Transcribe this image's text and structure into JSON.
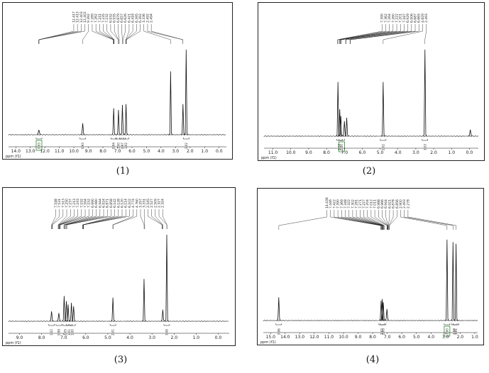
{
  "colors": {
    "spectrum": "#111111",
    "integral_box": "#2e8b2e",
    "frame": "#222222"
  },
  "chart_data": [
    {
      "type": "line",
      "caption": "(1)",
      "axis_unit": "ppm (f1)",
      "xlim": [
        14.5,
        -0.5
      ],
      "ticks": [
        "14.0",
        "13.0",
        "12.0",
        "11.0",
        "10.0",
        "9.0",
        "8.0",
        "7.0",
        "6.0",
        "5.0",
        "4.0",
        "3.0",
        "2.0",
        "1.0",
        "0.0"
      ],
      "tick_values": [
        14,
        13,
        12,
        11,
        10,
        9,
        8,
        7,
        6,
        5,
        4,
        3,
        2,
        1,
        0
      ],
      "peak_labels": [
        "12.417",
        "12.413",
        "12.403",
        "12.402",
        "9.392",
        "7.289",
        "7.262",
        "7.241",
        "7.235",
        "7.232",
        "6.932",
        "6.935",
        "6.879",
        "6.657",
        "6.626",
        "6.421",
        "6.418",
        "6.395",
        "6.392",
        "3.336",
        "2.492",
        "2.494"
      ],
      "peaks": [
        {
          "ppm": 12.41,
          "height": 0.04
        },
        {
          "ppm": 9.39,
          "height": 0.12
        },
        {
          "ppm": 7.26,
          "height": 0.3
        },
        {
          "ppm": 6.93,
          "height": 0.28
        },
        {
          "ppm": 6.66,
          "height": 0.34
        },
        {
          "ppm": 6.41,
          "height": 0.35
        },
        {
          "ppm": 3.34,
          "height": 0.74
        },
        {
          "ppm": 2.49,
          "height": 0.35
        },
        {
          "ppm": 2.27,
          "height": 1.0
        }
      ],
      "integrals": [
        {
          "ppm": 12.4,
          "label": "0.93",
          "boxed": true
        },
        {
          "ppm": 9.39,
          "label": "0.93",
          "boxed": false
        },
        {
          "ppm": 7.26,
          "label": "0.94",
          "boxed": false
        },
        {
          "ppm": 6.93,
          "label": "1.00",
          "boxed": false
        },
        {
          "ppm": 6.66,
          "label": "0.97",
          "boxed": false
        },
        {
          "ppm": 6.41,
          "label": "1.02",
          "boxed": false
        },
        {
          "ppm": 2.27,
          "label": "3.02",
          "boxed": false
        }
      ]
    },
    {
      "type": "line",
      "caption": "(2)",
      "axis_unit": "ppm (f1)",
      "xlim": [
        11.5,
        -0.5
      ],
      "ticks": [
        "11.0",
        "10.0",
        "9.0",
        "8.0",
        "7.0",
        "6.0",
        "5.0",
        "4.0",
        "3.0",
        "2.0",
        "1.0",
        "0.0"
      ],
      "tick_values": [
        11,
        10,
        9,
        8,
        7,
        6,
        5,
        4,
        3,
        2,
        1,
        0
      ],
      "peak_labels": [
        "7.390",
        "7.362",
        "7.264",
        "7.260",
        "7.222",
        "7.201",
        "7.187",
        "6.929",
        "6.906",
        "6.687",
        "6.665",
        "4.829",
        "2.493"
      ],
      "peaks": [
        {
          "ppm": 7.36,
          "height": 0.62
        },
        {
          "ppm": 7.26,
          "height": 0.3
        },
        {
          "ppm": 7.2,
          "height": 0.22
        },
        {
          "ppm": 7.0,
          "height": 0.16
        },
        {
          "ppm": 6.87,
          "height": 0.2
        },
        {
          "ppm": 4.83,
          "height": 0.62
        },
        {
          "ppm": 2.49,
          "height": 1.0
        },
        {
          "ppm": -0.05,
          "height": 0.06
        }
      ],
      "integrals": [
        {
          "ppm": 7.28,
          "label": "2.18",
          "boxed": false
        },
        {
          "ppm": 7.15,
          "label": "2.00",
          "boxed": true
        },
        {
          "ppm": 4.83,
          "label": "2.02",
          "boxed": false
        },
        {
          "ppm": 2.49,
          "label": "3.03",
          "boxed": false
        }
      ]
    },
    {
      "type": "line",
      "caption": "(3)",
      "axis_unit": "ppm (f1)",
      "xlim": [
        9.5,
        -0.5
      ],
      "ticks": [
        "9.0",
        "8.0",
        "7.0",
        "6.0",
        "5.0",
        "4.0",
        "3.0",
        "2.0",
        "1.0",
        "0.0"
      ],
      "tick_values": [
        9,
        8,
        7,
        6,
        5,
        4,
        3,
        2,
        1,
        0
      ],
      "peak_labels": [
        "7.548",
        "7.531",
        "7.513",
        "7.250",
        "7.237",
        "7.213",
        "7.193",
        "7.192",
        "7.164",
        "7.152",
        "6.990",
        "6.980",
        "6.944",
        "6.924",
        "6.871",
        "6.858",
        "6.142",
        "6.128",
        "6.120",
        "6.114",
        "6.102",
        "4.774",
        "4.760",
        "3.357",
        "3.331",
        "2.545",
        "2.527",
        "2.509",
        "2.327",
        "2.324"
      ],
      "peaks": [
        {
          "ppm": 7.55,
          "height": 0.1
        },
        {
          "ppm": 7.22,
          "height": 0.08
        },
        {
          "ppm": 6.98,
          "height": 0.28
        },
        {
          "ppm": 6.88,
          "height": 0.22
        },
        {
          "ppm": 6.8,
          "height": 0.18
        },
        {
          "ppm": 6.65,
          "height": 0.2
        },
        {
          "ppm": 6.55,
          "height": 0.16
        },
        {
          "ppm": 4.77,
          "height": 0.26
        },
        {
          "ppm": 3.36,
          "height": 0.48
        },
        {
          "ppm": 2.51,
          "height": 0.12
        },
        {
          "ppm": 2.33,
          "height": 1.0
        }
      ],
      "integrals": [
        {
          "ppm": 7.55,
          "label": "1.02",
          "boxed": false
        },
        {
          "ppm": 7.22,
          "label": "0.99",
          "boxed": false
        },
        {
          "ppm": 6.92,
          "label": "2.05",
          "boxed": false
        },
        {
          "ppm": 6.75,
          "label": "1.01",
          "boxed": false
        },
        {
          "ppm": 6.6,
          "label": "1.00",
          "boxed": false
        },
        {
          "ppm": 4.77,
          "label": "2.01",
          "boxed": false
        },
        {
          "ppm": 2.33,
          "label": "3.06",
          "boxed": false
        }
      ]
    },
    {
      "type": "line",
      "caption": "(4)",
      "axis_unit": "ppm (f1)",
      "xlim": [
        15.5,
        0.8
      ],
      "ticks": [
        "15.0",
        "14.0",
        "13.0",
        "12.0",
        "11.0",
        "10.0",
        "9.0",
        "8.0",
        "7.0",
        "6.0",
        "5.0",
        "4.0",
        "3.0",
        "2.0",
        "1.0"
      ],
      "tick_values": [
        15,
        14,
        13,
        12,
        11,
        10,
        9,
        8,
        7,
        6,
        5,
        4,
        3,
        2,
        1
      ],
      "peak_labels": [
        "14.436",
        "7.446",
        "7.422",
        "7.390",
        "7.369",
        "7.348",
        "7.322",
        "7.302",
        "7.281",
        "7.271",
        "7.227",
        "7.204",
        "7.012",
        "7.011",
        "6.988",
        "6.966",
        "6.944",
        "6.921",
        "6.878",
        "6.856",
        "2.900",
        "2.493",
        "2.278"
      ],
      "peaks": [
        {
          "ppm": 14.44,
          "height": 0.26
        },
        {
          "ppm": 7.42,
          "height": 0.22
        },
        {
          "ppm": 7.34,
          "height": 0.24
        },
        {
          "ppm": 7.27,
          "height": 0.2
        },
        {
          "ppm": 7.02,
          "height": 0.12
        },
        {
          "ppm": 2.9,
          "height": 0.95
        },
        {
          "ppm": 2.49,
          "height": 0.92
        },
        {
          "ppm": 2.28,
          "height": 0.9
        }
      ],
      "integrals": [
        {
          "ppm": 14.44,
          "label": "0.96",
          "boxed": false
        },
        {
          "ppm": 7.38,
          "label": "2.02",
          "boxed": false
        },
        {
          "ppm": 7.28,
          "label": "2.03",
          "boxed": false
        },
        {
          "ppm": 2.9,
          "label": "3.00",
          "boxed": true
        },
        {
          "ppm": 2.4,
          "label": "2.98",
          "boxed": false
        },
        {
          "ppm": 2.28,
          "label": "3.01",
          "boxed": false
        }
      ]
    }
  ]
}
